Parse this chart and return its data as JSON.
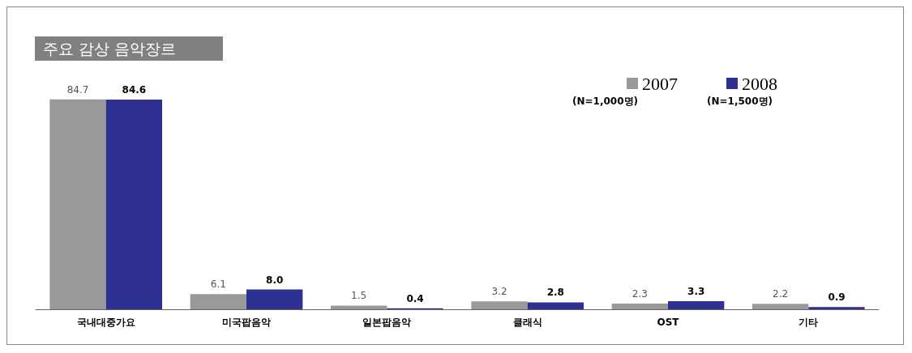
{
  "chart_data": {
    "type": "bar",
    "title": "주요 감상 음악장르",
    "categories": [
      "국내대중가요",
      "미국팝음악",
      "일본팝음악",
      "클래식",
      "OST",
      "기타"
    ],
    "series": [
      {
        "name": "2007",
        "color": "#999999",
        "values": [
          84.7,
          6.1,
          1.5,
          3.2,
          2.3,
          2.2
        ],
        "value_labels": [
          "84.7",
          "6.1",
          "1.5",
          "3.2",
          "2.3",
          "2.2"
        ]
      },
      {
        "name": "2008",
        "color": "#2e3192",
        "values": [
          84.6,
          8.0,
          0.4,
          2.8,
          3.3,
          0.9
        ],
        "value_labels": [
          "84.6",
          "8.0",
          "0.4",
          "2.8",
          "3.3",
          "0.9"
        ]
      }
    ],
    "annotations": [
      "(N=1,000명)",
      "(N=1,500명)"
    ],
    "legend": "top right"
  }
}
